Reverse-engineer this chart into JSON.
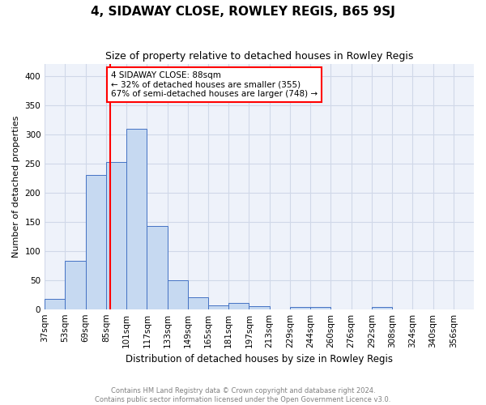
{
  "title": "4, SIDAWAY CLOSE, ROWLEY REGIS, B65 9SJ",
  "subtitle": "Size of property relative to detached houses in Rowley Regis",
  "xlabel": "Distribution of detached houses by size in Rowley Regis",
  "ylabel": "Number of detached properties",
  "footnote1": "Contains HM Land Registry data © Crown copyright and database right 2024.",
  "footnote2": "Contains public sector information licensed under the Open Government Licence v3.0.",
  "bar_labels": [
    "37sqm",
    "53sqm",
    "69sqm",
    "85sqm",
    "101sqm",
    "117sqm",
    "133sqm",
    "149sqm",
    "165sqm",
    "181sqm",
    "197sqm",
    "213sqm",
    "229sqm",
    "244sqm",
    "260sqm",
    "276sqm",
    "292sqm",
    "308sqm",
    "324sqm",
    "340sqm",
    "356sqm"
  ],
  "bar_values": [
    17,
    83,
    230,
    252,
    309,
    143,
    50,
    20,
    7,
    10,
    5,
    0,
    4,
    4,
    0,
    0,
    4,
    0,
    0,
    0,
    0
  ],
  "bar_color": "#c6d9f1",
  "bar_edge_color": "#4472c4",
  "annotation_text": "4 SIDAWAY CLOSE: 88sqm\n← 32% of detached houses are smaller (355)\n67% of semi-detached houses are larger (748) →",
  "annotation_box_color": "white",
  "annotation_box_edge_color": "red",
  "redline_x": 88,
  "redline_color": "red",
  "ylim": [
    0,
    420
  ],
  "yticks": [
    0,
    50,
    100,
    150,
    200,
    250,
    300,
    350,
    400
  ],
  "grid_color": "#d0d8e8",
  "bg_color": "#eef2fa",
  "title_fontsize": 11,
  "subtitle_fontsize": 9,
  "xlabel_fontsize": 8.5,
  "ylabel_fontsize": 8,
  "tick_fontsize": 7.5,
  "annotation_fontsize": 7.5,
  "footnote_fontsize": 6.0
}
